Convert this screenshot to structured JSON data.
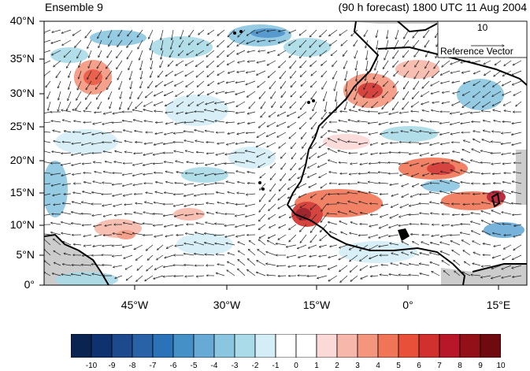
{
  "header": {
    "left_title": "Ensemble 9",
    "right_title": "(90 h forecast) 1800 UTC 11 Aug 2004"
  },
  "map": {
    "lat_labels": [
      "40°N",
      "35°N",
      "30°N",
      "25°N",
      "20°N",
      "15°N",
      "10°N",
      "5°N",
      "0°"
    ],
    "lon_labels": [
      "45°W",
      "30°W",
      "15°W",
      "0°",
      "15°E"
    ],
    "reference_vector": {
      "magnitude": "10",
      "label": "Reference Vector"
    },
    "land_fill_color": "#cccccc",
    "coast_color": "#000000"
  },
  "colorbar": {
    "labels": [
      "-10",
      "-9",
      "-8",
      "-7",
      "-6",
      "-5",
      "-4",
      "-3",
      "-2",
      "-1",
      "0",
      "1",
      "2",
      "3",
      "4",
      "5",
      "6",
      "7",
      "8",
      "9",
      "10"
    ],
    "colors": [
      "#0a2451",
      "#0e3270",
      "#1c4a8c",
      "#2a62a8",
      "#2a73b8",
      "#4690c8",
      "#68aad6",
      "#8ac6e0",
      "#aadbe8",
      "#d4eef8",
      "#ffffff",
      "#ffffff",
      "#fbd9d6",
      "#f7b7aa",
      "#f4967e",
      "#f07556",
      "#e8503a",
      "#d2302c",
      "#b8172a",
      "#941018",
      "#6e0a10"
    ]
  }
}
